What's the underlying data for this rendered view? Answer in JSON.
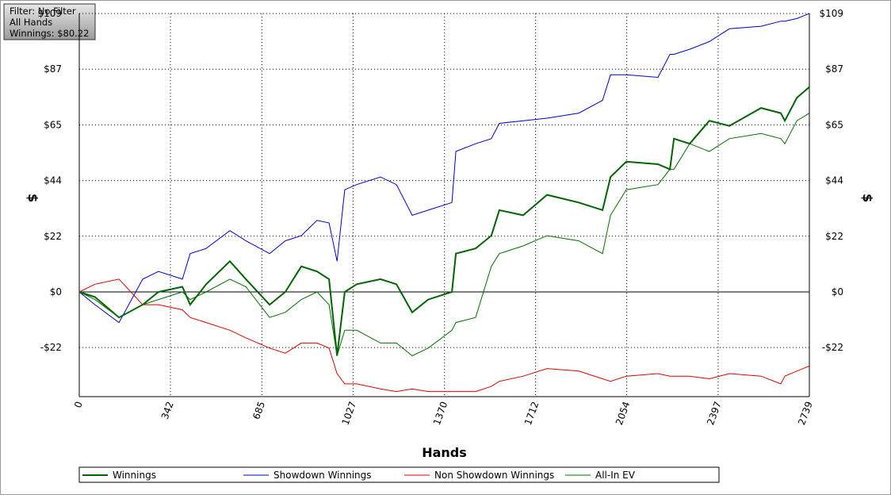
{
  "chart_data": {
    "type": "line",
    "info": [
      "Filter: No Filter",
      "All Hands",
      "Winnings: $80.22"
    ],
    "xlabel": "Hands",
    "ylabel": "$",
    "y2label": "$",
    "x": [
      0,
      59,
      149,
      238,
      297,
      387,
      416,
      476,
      565,
      625,
      714,
      773,
      833,
      892,
      937,
      967,
      996,
      1041,
      1130,
      1190,
      1249,
      1309,
      1398,
      1413,
      1487,
      1546,
      1576,
      1665,
      1755,
      1874,
      1963,
      1993,
      2052,
      2171,
      2216,
      2231,
      2290,
      2364,
      2439,
      2558,
      2632,
      2647,
      2692,
      2739
    ],
    "series": [
      {
        "name": "Winnings",
        "color": "#006400",
        "width": 2,
        "values": [
          0,
          -2,
          -10,
          -5,
          0,
          2,
          -5,
          3,
          12,
          5,
          -5,
          0,
          10,
          8,
          5,
          -25,
          0,
          3,
          5,
          3,
          -8,
          -3,
          0,
          15,
          17,
          22,
          32,
          30,
          38,
          35,
          32,
          45,
          51,
          50,
          48,
          60,
          58,
          67,
          65,
          72,
          70,
          67,
          76,
          80.22
        ]
      },
      {
        "name": "Showdown Winnings",
        "color": "#0000cc",
        "width": 1,
        "values": [
          0,
          -5,
          -12,
          5,
          8,
          5,
          15,
          17,
          24,
          20,
          15,
          20,
          22,
          28,
          27,
          12,
          40,
          42,
          45,
          42,
          30,
          32,
          35,
          55,
          58,
          60,
          66,
          67,
          68,
          70,
          75,
          85,
          85,
          84,
          93,
          93,
          95,
          98,
          103,
          104,
          106,
          106,
          107,
          109
        ]
      },
      {
        "name": "Non Showdown Winnings",
        "color": "#dd0000",
        "width": 1,
        "values": [
          0,
          3,
          5,
          -5,
          -5,
          -7,
          -10,
          -12,
          -15,
          -18,
          -22,
          -24,
          -20,
          -20,
          -22,
          -32,
          -36,
          -36,
          -38,
          -39,
          -38,
          -39,
          -39,
          -39,
          -39,
          -37,
          -35,
          -33,
          -30,
          -31,
          -34,
          -35,
          -33,
          -32,
          -33,
          -33,
          -33,
          -34,
          -32,
          -33,
          -36,
          -33,
          -31,
          -29
        ]
      },
      {
        "name": "All-In EV",
        "color": "#007000",
        "width": 1,
        "values": [
          0,
          -3,
          -10,
          -5,
          -3,
          0,
          -3,
          0,
          5,
          2,
          -10,
          -8,
          -3,
          0,
          -5,
          -25,
          -15,
          -15,
          -20,
          -20,
          -25,
          -22,
          -15,
          -12,
          -10,
          10,
          15,
          18,
          22,
          20,
          15,
          30,
          40,
          42,
          48,
          48,
          58,
          55,
          60,
          62,
          60,
          58,
          67,
          70
        ]
      }
    ],
    "xlim": [
      0,
      2739
    ],
    "xticks": [
      0,
      342,
      685,
      1027,
      1370,
      1712,
      2054,
      2397,
      2739
    ],
    "ylim": [
      -41,
      109
    ],
    "yticks": [
      {
        "value": -21.8,
        "label": "-$22"
      },
      {
        "value": 0,
        "label": "$0"
      },
      {
        "value": 21.8,
        "label": "$22"
      },
      {
        "value": 43.6,
        "label": "$44"
      },
      {
        "value": 65.4,
        "label": "$65"
      },
      {
        "value": 87.2,
        "label": "$87"
      },
      {
        "value": 109,
        "label": "$109"
      }
    ],
    "grid": true
  }
}
